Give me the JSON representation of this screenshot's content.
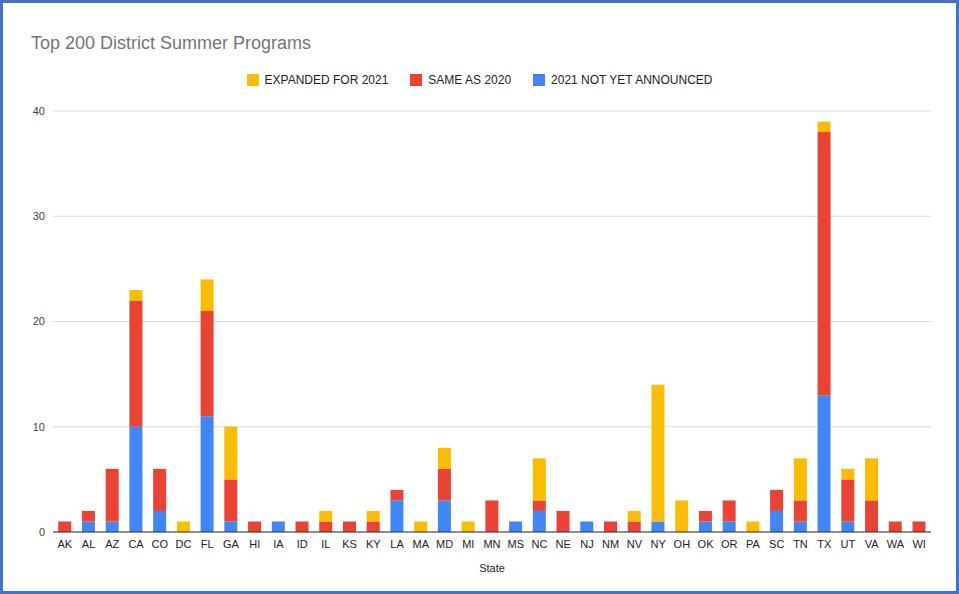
{
  "chart_data": {
    "type": "bar",
    "title": "Top 200 District Summer Programs",
    "x_label": "State",
    "categories": [
      "AK",
      "AL",
      "AZ",
      "CA",
      "CO",
      "DC",
      "FL",
      "GA",
      "HI",
      "IA",
      "ID",
      "IL",
      "KS",
      "KY",
      "LA",
      "MA",
      "MD",
      "MI",
      "MN",
      "MS",
      "NC",
      "NE",
      "NJ",
      "NM",
      "NV",
      "NY",
      "OH",
      "OK",
      "OR",
      "PA",
      "SC",
      "TN",
      "TX",
      "UT",
      "VA",
      "WA",
      "WI"
    ],
    "series": [
      {
        "name": "EXPANDED FOR 2021",
        "color": "#fbbc04",
        "values": [
          0,
          0,
          0,
          1,
          0,
          1,
          3,
          5,
          0,
          0,
          0,
          1,
          0,
          1,
          0,
          1,
          2,
          1,
          0,
          0,
          4,
          0,
          0,
          0,
          1,
          13,
          3,
          0,
          0,
          1,
          0,
          4,
          1,
          1,
          4,
          0,
          0
        ]
      },
      {
        "name": "SAME AS 2020",
        "color": "#ea4335",
        "values": [
          1,
          1,
          5,
          12,
          4,
          0,
          10,
          4,
          1,
          0,
          1,
          1,
          1,
          1,
          1,
          0,
          3,
          0,
          3,
          0,
          1,
          2,
          0,
          1,
          1,
          0,
          0,
          1,
          2,
          0,
          2,
          2,
          25,
          4,
          3,
          1,
          1
        ]
      },
      {
        "name": "2021 NOT YET ANNOUNCED",
        "color": "#4285f4",
        "values": [
          0,
          1,
          1,
          10,
          2,
          0,
          11,
          1,
          0,
          1,
          0,
          0,
          0,
          0,
          3,
          0,
          3,
          0,
          0,
          1,
          2,
          0,
          1,
          0,
          0,
          1,
          0,
          1,
          1,
          0,
          2,
          1,
          13,
          1,
          0,
          0,
          0
        ]
      }
    ],
    "ylim": [
      0,
      40
    ],
    "yticks": [
      0,
      10,
      20,
      30,
      40
    ],
    "stacked": true,
    "grid": true,
    "legend": "top"
  }
}
